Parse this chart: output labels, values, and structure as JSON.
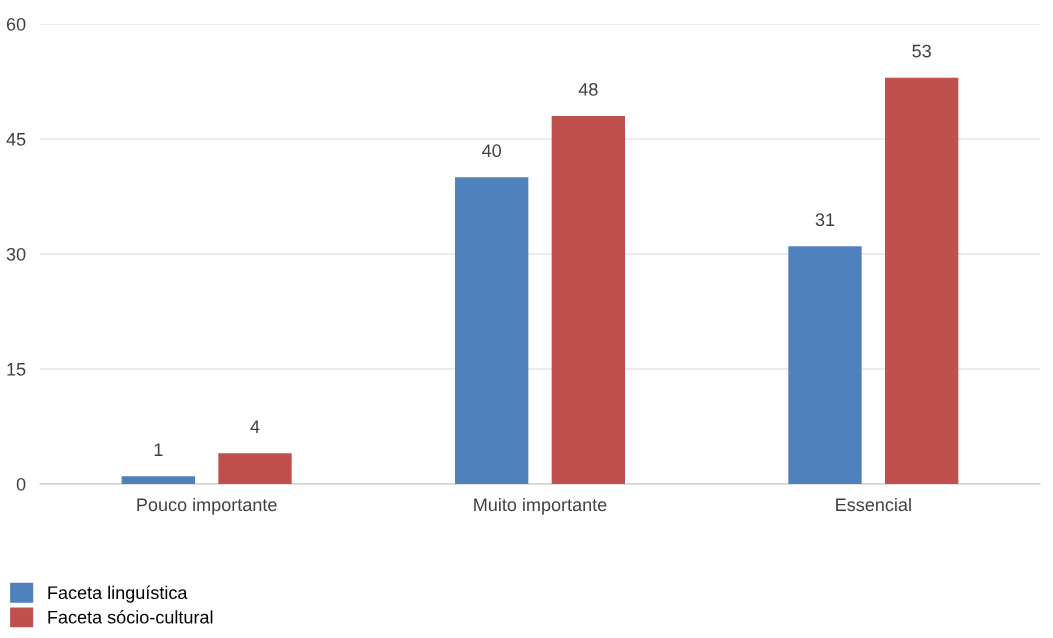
{
  "chart_data": {
    "type": "bar",
    "categories": [
      "Pouco importante",
      "Muito importante",
      "Essencial"
    ],
    "series": [
      {
        "name": "Faceta linguística",
        "color": "#4f81bd",
        "values": [
          1,
          40,
          31
        ]
      },
      {
        "name": "Faceta sócio-cultural",
        "color": "#c0504d",
        "values": [
          4,
          48,
          53
        ]
      }
    ],
    "ylim": [
      0,
      60
    ],
    "yticks": [
      0,
      15,
      30,
      45,
      60
    ],
    "grid": "y",
    "legend": "bottom left",
    "data_labels": true
  }
}
